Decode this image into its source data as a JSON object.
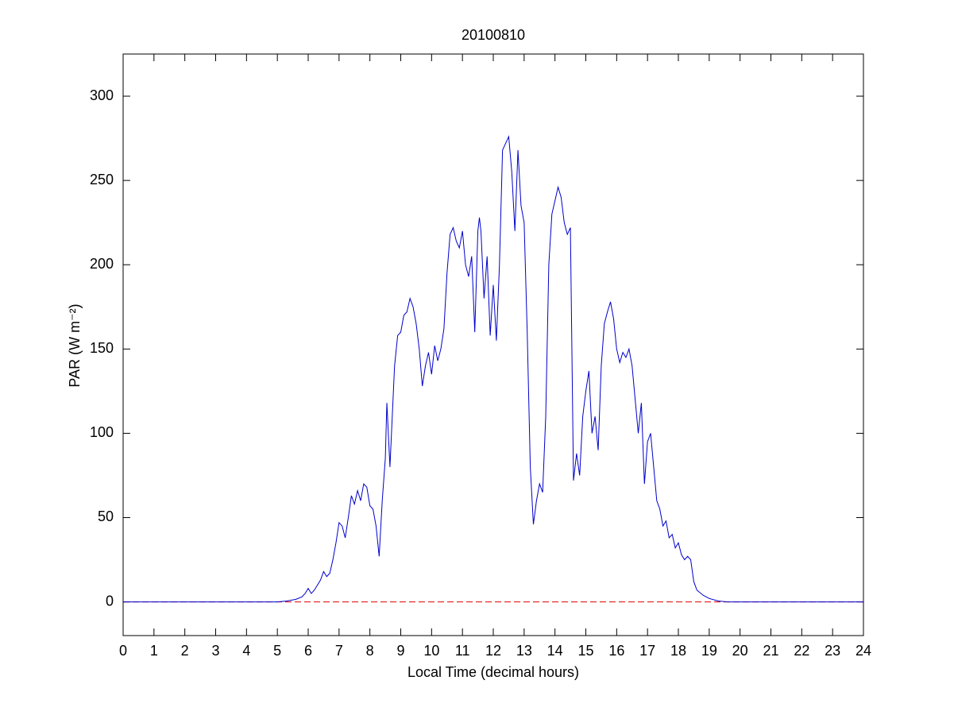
{
  "chart_data": {
    "type": "line",
    "title": "20100810",
    "xlabel": "Local Time (decimal hours)",
    "ylabel": "PAR (W m⁻²)",
    "x": [
      0,
      5.0,
      5.3,
      5.6,
      5.8,
      5.9,
      6.0,
      6.1,
      6.2,
      6.3,
      6.4,
      6.5,
      6.6,
      6.7,
      6.8,
      6.9,
      7.0,
      7.1,
      7.2,
      7.3,
      7.4,
      7.5,
      7.6,
      7.7,
      7.8,
      7.9,
      8.0,
      8.1,
      8.2,
      8.3,
      8.4,
      8.5,
      8.55,
      8.65,
      8.7,
      8.8,
      8.9,
      9.0,
      9.1,
      9.2,
      9.3,
      9.4,
      9.5,
      9.6,
      9.7,
      9.8,
      9.9,
      10.0,
      10.1,
      10.2,
      10.3,
      10.4,
      10.5,
      10.6,
      10.7,
      10.8,
      10.9,
      11.0,
      11.1,
      11.2,
      11.3,
      11.4,
      11.5,
      11.55,
      11.6,
      11.7,
      11.8,
      11.9,
      12.0,
      12.1,
      12.2,
      12.3,
      12.4,
      12.5,
      12.6,
      12.7,
      12.8,
      12.9,
      13.0,
      13.1,
      13.2,
      13.3,
      13.4,
      13.5,
      13.6,
      13.7,
      13.8,
      13.9,
      14.0,
      14.1,
      14.2,
      14.3,
      14.4,
      14.5,
      14.6,
      14.7,
      14.8,
      14.9,
      15.0,
      15.1,
      15.2,
      15.3,
      15.4,
      15.5,
      15.6,
      15.7,
      15.8,
      15.9,
      16.0,
      16.1,
      16.2,
      16.3,
      16.4,
      16.5,
      16.6,
      16.7,
      16.8,
      16.9,
      17.0,
      17.1,
      17.2,
      17.3,
      17.4,
      17.5,
      17.6,
      17.7,
      17.8,
      17.9,
      18.0,
      18.1,
      18.2,
      18.3,
      18.4,
      18.5,
      18.6,
      18.8,
      19.0,
      19.3,
      19.6,
      24
    ],
    "values": [
      0,
      0,
      0.5,
      1.5,
      3,
      5,
      8,
      5,
      7,
      10,
      13,
      18,
      15,
      17,
      25,
      35,
      47,
      45,
      38,
      50,
      63,
      58,
      66,
      60,
      70,
      68,
      57,
      55,
      45,
      27,
      60,
      85,
      118,
      80,
      100,
      140,
      158,
      160,
      170,
      172,
      180,
      175,
      165,
      150,
      128,
      140,
      148,
      135,
      152,
      143,
      150,
      162,
      195,
      218,
      222,
      214,
      210,
      220,
      200,
      193,
      205,
      160,
      220,
      228,
      220,
      180,
      205,
      158,
      188,
      155,
      200,
      268,
      272,
      276,
      255,
      220,
      268,
      235,
      225,
      160,
      80,
      46,
      60,
      70,
      65,
      110,
      200,
      230,
      238,
      246,
      240,
      225,
      218,
      222,
      72,
      88,
      75,
      110,
      125,
      137,
      100,
      110,
      90,
      140,
      165,
      172,
      178,
      168,
      150,
      142,
      148,
      145,
      150,
      140,
      120,
      100,
      118,
      70,
      95,
      100,
      80,
      60,
      55,
      45,
      48,
      38,
      40,
      32,
      35,
      28,
      25,
      27,
      25,
      12,
      7,
      4,
      2,
      0.5,
      0,
      0
    ],
    "color": "#0000cc",
    "hline": 0,
    "hline_color": "#dd0000",
    "xlim": [
      0,
      24
    ],
    "xticks": [
      0,
      1,
      2,
      3,
      4,
      5,
      6,
      7,
      8,
      9,
      10,
      11,
      12,
      13,
      14,
      15,
      16,
      17,
      18,
      19,
      20,
      21,
      22,
      23,
      24
    ],
    "ylim": [
      -20,
      325
    ],
    "yticks": [
      0,
      50,
      100,
      150,
      200,
      250,
      300
    ],
    "grid": false
  }
}
